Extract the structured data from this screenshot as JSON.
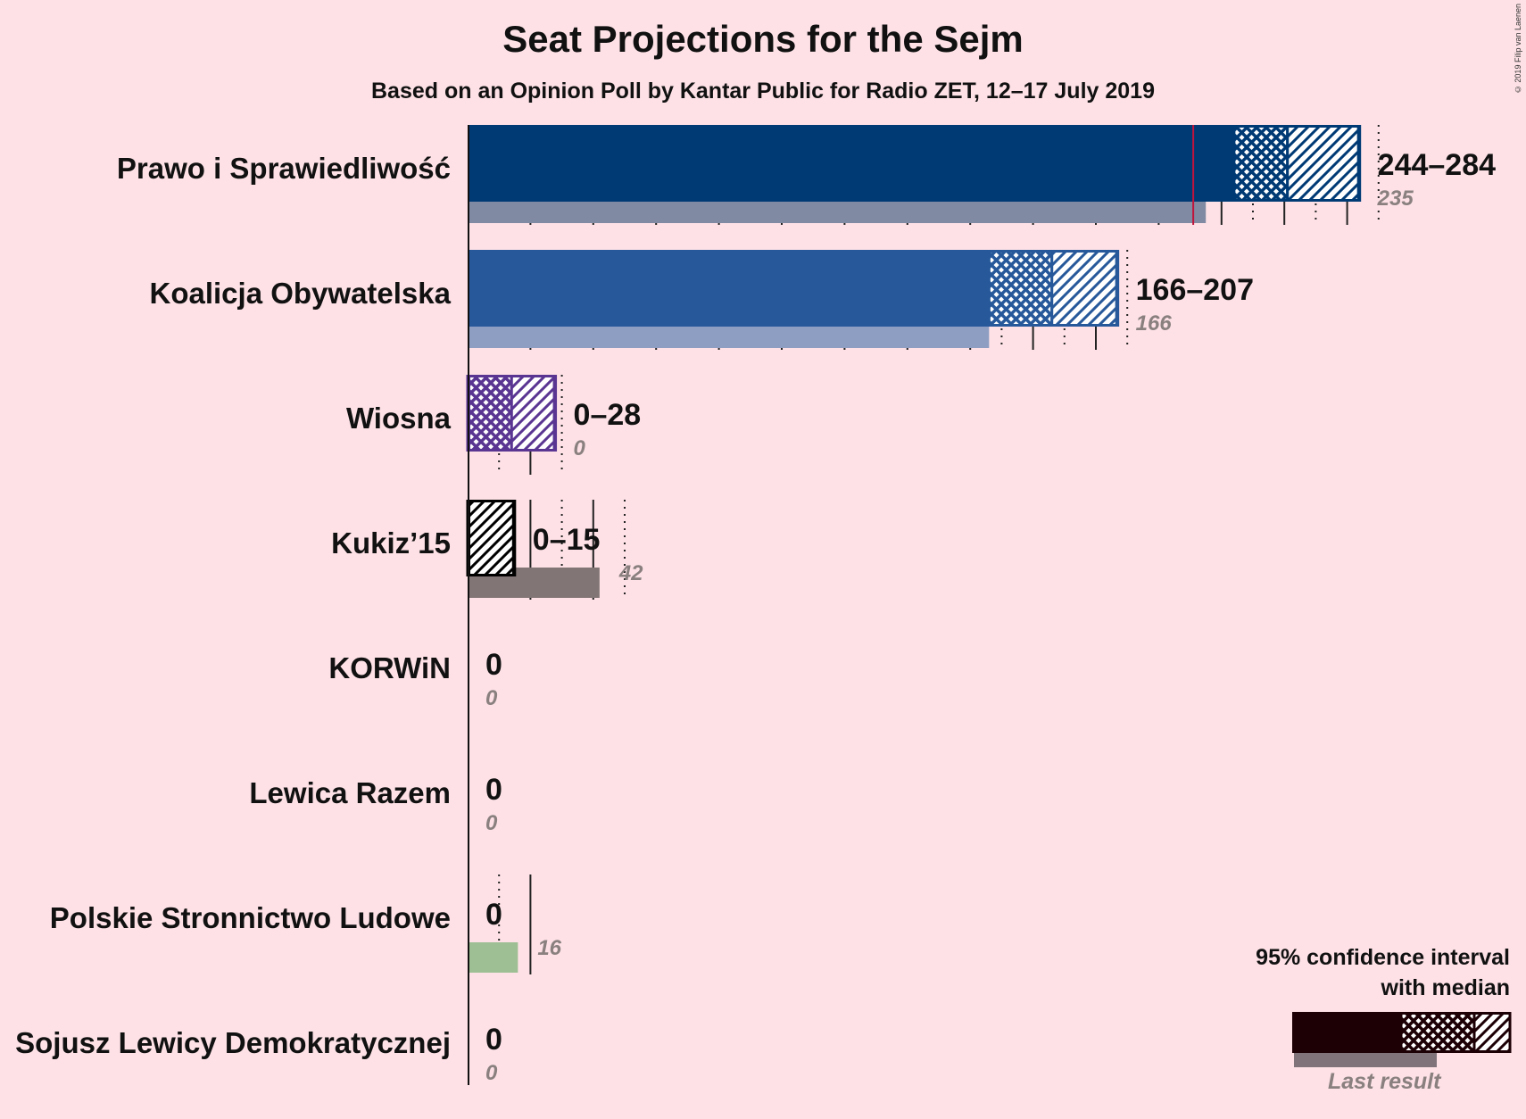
{
  "title": "Seat Projections for the Sejm",
  "subtitle": "Based on an Opinion Poll by Kantar Public for Radio ZET, 12–17 July 2019",
  "copyright": "© 2019 Filip van Laenen",
  "legend": {
    "title_line1": "95% confidence interval",
    "title_line2": "with median",
    "last_result": "Last result"
  },
  "colors": {
    "background": "#fde1e6",
    "majority_line": "#c0143c",
    "last_result_default": "#80737a"
  },
  "chart_data": {
    "type": "bar",
    "orientation": "horizontal",
    "majority": 231,
    "x_range": [
      0,
      290
    ],
    "gridline_step": 10,
    "parties": [
      {
        "name": "Prawo i Sprawiedliwość",
        "range_label": "244–284",
        "last_label": "235",
        "low": 244,
        "median": 261,
        "high": 284,
        "last": 235,
        "color": "#003a75",
        "last_color": "#808aa2"
      },
      {
        "name": "Koalicja Obywatelska",
        "range_label": "166–207",
        "last_label": "166",
        "low": 166,
        "median": 186,
        "high": 207,
        "last": 166,
        "color": "#26589a",
        "last_color": "#8e9ec2"
      },
      {
        "name": "Wiosna",
        "range_label": "0–28",
        "last_label": "0",
        "low": 0,
        "median": 14,
        "high": 28,
        "last": 0,
        "color": "#5a3692",
        "last_color": "#9a8ab8"
      },
      {
        "name": "Kukiz’15",
        "range_label": "0–15",
        "last_label": "42",
        "low": 0,
        "median": 0,
        "high": 15,
        "last": 42,
        "color": "#000000",
        "last_color": "#827575"
      },
      {
        "name": "KORWiN",
        "range_label": "0",
        "last_label": "0",
        "low": 0,
        "median": 0,
        "high": 0,
        "last": 0,
        "color": "#000000",
        "last_color": "#827575"
      },
      {
        "name": "Lewica Razem",
        "range_label": "0",
        "last_label": "0",
        "low": 0,
        "median": 0,
        "high": 0,
        "last": 0,
        "color": "#000000",
        "last_color": "#827575"
      },
      {
        "name": "Polskie Stronnictwo Ludowe",
        "range_label": "0",
        "last_label": "16",
        "low": 0,
        "median": 0,
        "high": 0,
        "last": 16,
        "color": "#3a9b3a",
        "last_color": "#9dbf93"
      },
      {
        "name": "Sojusz Lewicy Demokratycznej",
        "range_label": "0",
        "last_label": "0",
        "low": 0,
        "median": 0,
        "high": 0,
        "last": 0,
        "color": "#000000",
        "last_color": "#827575"
      }
    ]
  }
}
